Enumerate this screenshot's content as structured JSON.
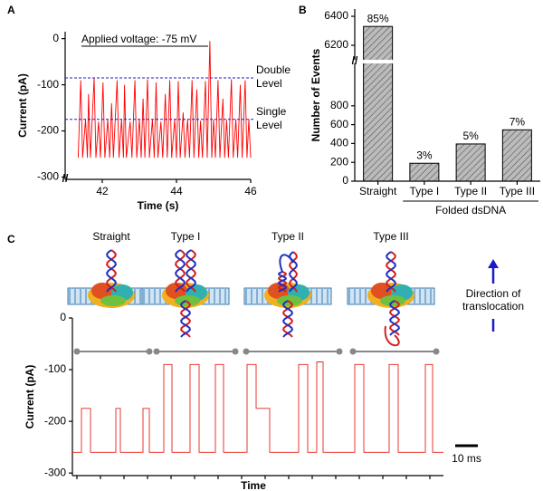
{
  "chart_data": [
    {
      "type": "line",
      "panel_label": "A",
      "annotation": "Applied voltage: -75 mV",
      "xlabel": "Time (s)",
      "ylabel": "Current (pA)",
      "xlim": [
        41,
        46
      ],
      "ylim": [
        -305,
        15
      ],
      "xticks": [
        42,
        44,
        46
      ],
      "yticks": [
        -300,
        -200,
        -100,
        0
      ],
      "levels": [
        {
          "value": -85,
          "label_lines": [
            "Double",
            "Level"
          ]
        },
        {
          "value": -175,
          "label_lines": [
            "Single",
            "Level"
          ]
        }
      ],
      "series": [
        {
          "color": "#ff0000",
          "x": [
            41.35,
            41.42,
            41.47,
            41.55,
            41.6,
            41.63,
            41.68,
            41.78,
            41.83,
            41.9,
            41.95,
            42.02,
            42.07,
            42.15,
            42.2,
            42.25,
            42.3,
            42.4,
            42.45,
            42.52,
            42.57,
            42.6,
            42.65,
            42.75,
            42.8,
            42.88,
            42.93,
            43.0,
            43.05,
            43.1,
            43.15,
            43.22,
            43.27,
            43.35,
            43.4,
            43.45,
            43.5,
            43.58,
            43.63,
            43.7,
            43.75,
            43.82,
            43.87,
            43.95,
            44.0,
            44.05,
            44.1,
            44.18,
            44.23,
            44.3,
            44.35,
            44.42,
            44.47,
            44.55,
            44.6,
            44.65,
            44.7,
            44.78,
            44.83,
            44.9,
            44.95,
            45.0,
            45.05,
            45.12,
            45.17,
            45.25,
            45.3,
            45.35,
            45.4,
            45.48,
            45.53,
            45.6,
            45.65,
            45.72,
            45.77,
            45.85,
            45.9,
            45.95,
            46.0
          ],
          "values": [
            -258,
            -90,
            -258,
            -175,
            -258,
            -120,
            -258,
            -85,
            -258,
            -180,
            -258,
            -95,
            -258,
            -175,
            -258,
            -140,
            -258,
            -90,
            -258,
            -175,
            -258,
            -100,
            -258,
            -180,
            -258,
            -90,
            -258,
            -175,
            -258,
            -130,
            -258,
            -88,
            -258,
            -175,
            -258,
            -95,
            -258,
            -180,
            -258,
            -120,
            -258,
            -90,
            -258,
            -175,
            -258,
            -92,
            -258,
            -160,
            -258,
            -175,
            -258,
            -90,
            -258,
            -110,
            -258,
            -178,
            -258,
            -92,
            -258,
            -5,
            -258,
            -175,
            -258,
            -90,
            -258,
            -130,
            -258,
            -176,
            -258,
            -88,
            -258,
            -175,
            -258,
            -100,
            -258,
            -90,
            -258,
            -175,
            -258
          ]
        }
      ]
    },
    {
      "type": "bar",
      "panel_label": "B",
      "ylabel": "Number of Events",
      "group_label": "Folded dsDNA",
      "categories": [
        "Straight",
        "Type I",
        "Type II",
        "Type III"
      ],
      "values": [
        6330,
        190,
        395,
        545
      ],
      "percent_labels": [
        "85%",
        "3%",
        "5%",
        "7%"
      ],
      "color": "#bbbbbb",
      "ylim": [
        0,
        6450
      ],
      "axis_break": [
        1250,
        6100
      ],
      "yticks": [
        0,
        200,
        400,
        600,
        800,
        6200,
        6400
      ]
    },
    {
      "type": "line",
      "panel_label": "C",
      "xlabel": "Time",
      "ylabel": "Current (pA)",
      "event_labels": [
        "Straight",
        "Type I",
        "Type II",
        "Type III"
      ],
      "direction_label": [
        "Direction of",
        "translocation"
      ],
      "scale_bar": {
        "value": 10,
        "label": "10 ms"
      },
      "xlim": [
        0,
        164
      ],
      "ylim": [
        -305,
        0
      ],
      "yticks": [
        -300,
        -200,
        -100,
        0
      ],
      "series": [
        {
          "color": "#e8221a",
          "x": [
            0,
            4,
            4,
            8,
            8,
            19.2,
            19.2,
            21.2,
            21.2,
            31.2,
            31.2,
            34,
            34,
            40.4,
            40.4,
            44,
            44,
            52,
            52,
            56,
            56,
            63.2,
            63.2,
            66.8,
            66.8,
            77.2,
            77.2,
            81.2,
            81.2,
            87.2,
            87.2,
            100,
            100,
            104,
            104,
            108,
            108,
            110.8,
            110.8,
            124.8,
            124.8,
            128.8,
            128.8,
            140,
            140,
            144,
            144,
            156,
            156,
            159.2,
            159.2,
            164
          ],
          "values": [
            -260,
            -260,
            -175,
            -175,
            -260,
            -260,
            -175,
            -175,
            -260,
            -260,
            -175,
            -175,
            -260,
            -260,
            -90,
            -90,
            -260,
            -260,
            -90,
            -90,
            -260,
            -260,
            -90,
            -90,
            -260,
            -260,
            -90,
            -90,
            -175,
            -175,
            -260,
            -260,
            -90,
            -90,
            -260,
            -260,
            -85,
            -85,
            -260,
            -260,
            -90,
            -90,
            -260,
            -260,
            -90,
            -90,
            -260,
            -260,
            -90,
            -90,
            -260,
            -260
          ]
        }
      ]
    }
  ]
}
